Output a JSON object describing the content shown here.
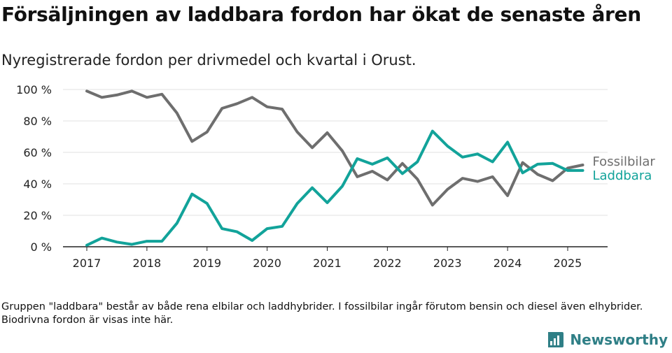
{
  "title": "Försäljningen av laddbara fordon har ökat de senaste åren",
  "subtitle": "Nyregistrerade fordon per drivmedel och kvartal i Orust.",
  "footnote": "Gruppen \"laddbara\" består av både rena elbilar och laddhybrider. I fossilbilar ingår förutom bensin och diesel även elhybrider. Biodrivna fordon är visas inte här.",
  "brand": {
    "name": "Newsworthy",
    "icon": "newsworthy-logo-icon"
  },
  "chart_data": {
    "type": "line",
    "ylim": [
      0,
      100
    ],
    "yticks": [
      0,
      20,
      40,
      60,
      80,
      100
    ],
    "ytick_labels": [
      "0 %",
      "20 %",
      "40 %",
      "60 %",
      "80 %",
      "100 %"
    ],
    "xlim": [
      2017,
      2025.25
    ],
    "xticks": [
      2017,
      2018,
      2019,
      2020,
      2021,
      2022,
      2023,
      2024,
      2025
    ],
    "xtick_labels": [
      "2017",
      "2018",
      "2019",
      "2020",
      "2021",
      "2022",
      "2023",
      "2024",
      "2025"
    ],
    "x": [
      2017,
      2017.25,
      2017.5,
      2017.75,
      2018,
      2018.25,
      2018.5,
      2018.75,
      2019,
      2019.25,
      2019.5,
      2019.75,
      2020,
      2020.25,
      2020.5,
      2020.75,
      2021,
      2021.25,
      2021.5,
      2021.75,
      2022,
      2022.25,
      2022.5,
      2022.75,
      2023,
      2023.25,
      2023.5,
      2023.75,
      2024,
      2024.25,
      2024.5,
      2024.75,
      2025,
      2025.25
    ],
    "grid": true,
    "series": [
      {
        "name": "Fossilbilar",
        "color": "#6e6e6e",
        "values": [
          99,
          95,
          96.5,
          99,
          95,
          97,
          85,
          67,
          73,
          88,
          91,
          95,
          89,
          87.5,
          73,
          63,
          72.5,
          61,
          44.5,
          48,
          42.5,
          53,
          43,
          26.5,
          36.5,
          43.5,
          41.5,
          44.5,
          32.5,
          53.5,
          46,
          42,
          50,
          52
        ]
      },
      {
        "name": "Laddbara",
        "color": "#12a39a",
        "values": [
          1,
          5.5,
          3,
          1.5,
          3.5,
          3.5,
          15,
          33.5,
          27.5,
          11.5,
          9.5,
          4,
          11.5,
          13,
          27.5,
          37.5,
          28,
          38.5,
          56,
          52.5,
          56.5,
          46.5,
          54,
          73.5,
          64,
          57,
          59,
          54,
          66.5,
          47,
          52.5,
          53,
          48.5,
          48.5
        ]
      }
    ]
  }
}
